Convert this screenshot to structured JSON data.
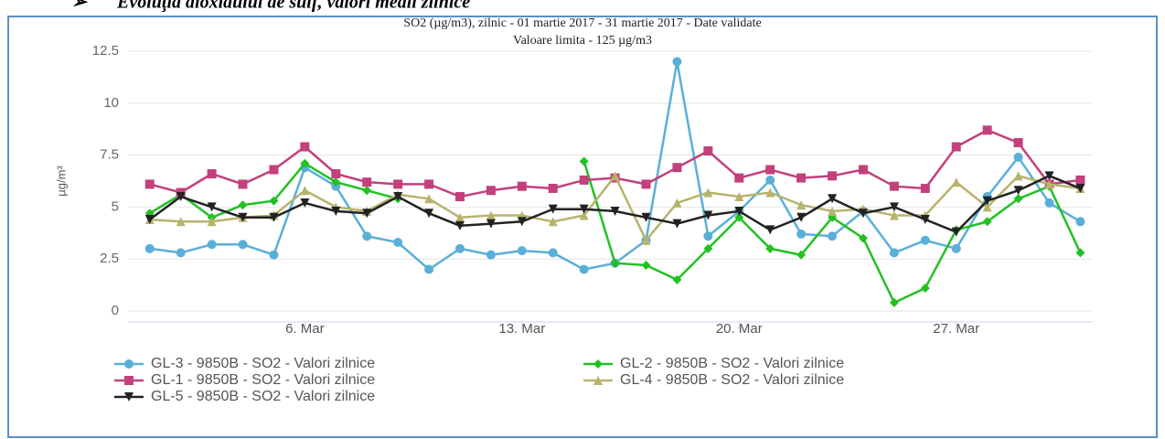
{
  "heading": "Evoluţia dioxidului de sulf, valori medii zilnice",
  "chart_data": {
    "type": "line",
    "title": "SO2 (µg/m3), zilnic - 01 martie 2017 - 31 martie 2017 - Date validate",
    "subtitle": "Valoare limita - 125 µg/m3",
    "y_label": "µg/m³",
    "x": [
      1,
      2,
      3,
      4,
      5,
      6,
      7,
      8,
      9,
      10,
      11,
      12,
      13,
      14,
      15,
      16,
      17,
      18,
      19,
      20,
      21,
      22,
      23,
      24,
      25,
      26,
      27,
      28,
      29,
      30,
      31
    ],
    "xlim": [
      0.3,
      31.4
    ],
    "xticks": [
      {
        "value": 6,
        "label": "6. Mar"
      },
      {
        "value": 13,
        "label": "13. Mar"
      },
      {
        "value": 20,
        "label": "20. Mar"
      },
      {
        "value": 27,
        "label": "27. Mar"
      }
    ],
    "ylim": [
      0,
      12.5
    ],
    "yticks": [
      0,
      2.5,
      5,
      7.5,
      10,
      12.5
    ],
    "grid": true,
    "series": [
      {
        "name": "GL-3 - 9850B - SO2 - Valori zilnice",
        "color": "#5aafd8",
        "marker": "circle",
        "values": [
          3.0,
          2.8,
          3.2,
          3.2,
          2.7,
          6.9,
          6.0,
          3.6,
          3.3,
          2.0,
          3.0,
          2.7,
          2.9,
          2.8,
          2.0,
          2.3,
          3.4,
          12.0,
          3.6,
          4.8,
          6.3,
          3.7,
          3.6,
          4.8,
          2.8,
          3.4,
          3.0,
          5.5,
          7.4,
          5.2,
          4.3
        ]
      },
      {
        "name": "GL-2 - 9850B - SO2 - Valori zilnice",
        "color": "#22c122",
        "marker": "diamond",
        "values": [
          4.7,
          5.6,
          4.5,
          5.1,
          5.3,
          7.1,
          6.2,
          5.8,
          5.4,
          null,
          null,
          null,
          null,
          null,
          7.2,
          2.3,
          2.2,
          1.5,
          3.0,
          4.5,
          3.0,
          2.7,
          4.5,
          3.5,
          0.4,
          1.1,
          3.9,
          4.3,
          5.4,
          6.0,
          2.8
        ]
      },
      {
        "name": "GL-1 - 9850B - SO2 - Valori zilnice",
        "color": "#c2407c",
        "marker": "square",
        "values": [
          6.1,
          5.7,
          6.6,
          6.1,
          6.8,
          7.9,
          6.6,
          6.2,
          6.1,
          6.1,
          5.5,
          5.8,
          6.0,
          5.9,
          6.3,
          6.4,
          6.1,
          6.9,
          7.7,
          6.4,
          6.8,
          6.4,
          6.5,
          6.8,
          6.0,
          5.9,
          7.9,
          8.7,
          8.1,
          6.1,
          6.3
        ]
      },
      {
        "name": "GL-4 - 9850B - SO2 - Valori zilnice",
        "color": "#b8b36c",
        "marker": "triangle",
        "values": [
          4.4,
          4.3,
          4.3,
          4.5,
          4.6,
          5.8,
          5.0,
          4.8,
          5.6,
          5.4,
          4.5,
          4.6,
          4.6,
          4.3,
          4.6,
          6.5,
          3.4,
          5.2,
          5.7,
          5.5,
          5.7,
          5.1,
          4.8,
          4.9,
          4.6,
          4.6,
          6.2,
          5.0,
          6.5,
          6.1,
          5.9
        ]
      },
      {
        "name": "GL-5 - 9850B - SO2 - Valori zilnice",
        "color": "#222222",
        "marker": "triangle-down",
        "values": [
          4.4,
          5.5,
          5.0,
          4.5,
          4.5,
          5.2,
          4.8,
          4.7,
          5.5,
          4.7,
          4.1,
          4.2,
          4.3,
          4.9,
          4.9,
          4.8,
          4.5,
          4.2,
          4.6,
          4.8,
          3.9,
          4.5,
          5.4,
          4.7,
          5.0,
          4.4,
          3.8,
          5.3,
          5.8,
          6.5,
          5.9
        ]
      }
    ]
  }
}
